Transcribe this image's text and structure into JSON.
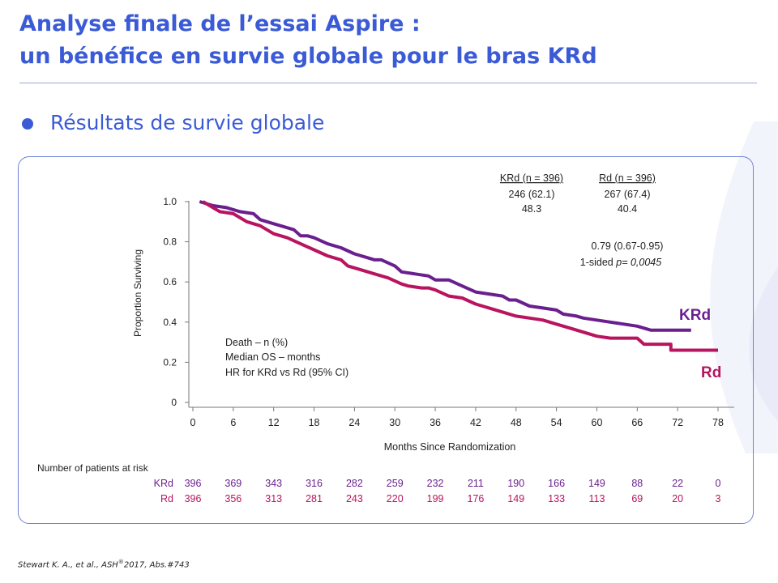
{
  "slide": {
    "title_line1": "Analyse finale de l’essai Aspire :",
    "title_line2": "un bénéfice en survie globale pour le bras KRd",
    "subtitle": "Résultats de survie globale",
    "citation_pre": "Stewart K. A., et al., ASH",
    "citation_sup": "®",
    "citation_post": "2017, Abs.#743"
  },
  "stats": {
    "krd_header": "KRd (n = 396)",
    "rd_header": "Rd (n = 396)",
    "krd_death": "246 (62.1)",
    "rd_death": "267 (67.4)",
    "krd_median": "48.3",
    "rd_median": "40.4",
    "hr": "0.79 (0.67-0.95)",
    "p_prefix": "1-sided ",
    "p_value": "p= 0,0045",
    "row_labels": [
      "Death – n (%)",
      "Median OS – months",
      "HR for KRd vs Rd (95% CI)"
    ]
  },
  "risk_table": {
    "title": "Number  of patients at risk",
    "rows": [
      {
        "label": "KRd",
        "values": [
          "396",
          "369",
          "343",
          "316",
          "282",
          "259",
          "232",
          "211",
          "190",
          "166",
          "149",
          "88",
          "22",
          "0"
        ]
      },
      {
        "label": "Rd",
        "values": [
          "396",
          "356",
          "313",
          "281",
          "243",
          "220",
          "199",
          "176",
          "149",
          "133",
          "113",
          "69",
          "20",
          "3"
        ]
      }
    ]
  },
  "colors": {
    "title": "#3b5bd6",
    "krd": "#6a1f8f",
    "rd": "#b8145f",
    "frame": "#6f82d6"
  },
  "chart_data": {
    "type": "line",
    "xlabel": "Months Since Randomization",
    "ylabel": "Proportion  Surviving",
    "xlim": [
      0,
      78
    ],
    "ylim": [
      0,
      1.0
    ],
    "xticks": [
      "0",
      "6",
      "12",
      "18",
      "24",
      "30",
      "36",
      "42",
      "48",
      "54",
      "60",
      "66",
      "72",
      "78"
    ],
    "yticks": [
      {
        "v": 0,
        "label": "0"
      },
      {
        "v": 0.2,
        "label": "0.2"
      },
      {
        "v": 0.4,
        "label": "0.4"
      },
      {
        "v": 0.6,
        "label": "0.6"
      },
      {
        "v": 0.8,
        "label": "0.8"
      },
      {
        "v": 1.0,
        "label": "1.0"
      }
    ],
    "series": [
      {
        "name": "KRd",
        "color": "#6a1f8f",
        "points": [
          [
            1,
            1.0
          ],
          [
            2,
            0.99
          ],
          [
            3,
            0.98
          ],
          [
            5,
            0.97
          ],
          [
            6,
            0.96
          ],
          [
            7,
            0.95
          ],
          [
            9,
            0.94
          ],
          [
            10,
            0.91
          ],
          [
            12,
            0.89
          ],
          [
            14,
            0.87
          ],
          [
            15,
            0.86
          ],
          [
            16,
            0.83
          ],
          [
            17,
            0.83
          ],
          [
            18,
            0.82
          ],
          [
            20,
            0.79
          ],
          [
            22,
            0.77
          ],
          [
            24,
            0.74
          ],
          [
            26,
            0.72
          ],
          [
            27,
            0.71
          ],
          [
            28,
            0.71
          ],
          [
            30,
            0.68
          ],
          [
            31,
            0.65
          ],
          [
            33,
            0.64
          ],
          [
            35,
            0.63
          ],
          [
            36,
            0.61
          ],
          [
            38,
            0.61
          ],
          [
            40,
            0.58
          ],
          [
            42,
            0.55
          ],
          [
            44,
            0.54
          ],
          [
            46,
            0.53
          ],
          [
            47,
            0.51
          ],
          [
            48,
            0.51
          ],
          [
            50,
            0.48
          ],
          [
            52,
            0.47
          ],
          [
            54,
            0.46
          ],
          [
            55,
            0.44
          ],
          [
            57,
            0.43
          ],
          [
            58,
            0.42
          ],
          [
            60,
            0.41
          ],
          [
            62,
            0.4
          ],
          [
            64,
            0.39
          ],
          [
            66,
            0.38
          ],
          [
            68,
            0.36
          ],
          [
            70,
            0.36
          ],
          [
            72,
            0.36
          ],
          [
            74,
            0.36
          ]
        ]
      },
      {
        "name": "Rd",
        "color": "#b8145f",
        "points": [
          [
            1.5,
            1.0
          ],
          [
            2,
            0.99
          ],
          [
            4,
            0.95
          ],
          [
            6,
            0.94
          ],
          [
            8,
            0.9
          ],
          [
            10,
            0.88
          ],
          [
            12,
            0.84
          ],
          [
            14,
            0.82
          ],
          [
            16,
            0.79
          ],
          [
            18,
            0.76
          ],
          [
            20,
            0.73
          ],
          [
            22,
            0.71
          ],
          [
            23,
            0.68
          ],
          [
            25,
            0.66
          ],
          [
            27,
            0.64
          ],
          [
            29,
            0.62
          ],
          [
            31,
            0.59
          ],
          [
            32,
            0.58
          ],
          [
            34,
            0.57
          ],
          [
            35,
            0.57
          ],
          [
            36,
            0.56
          ],
          [
            38,
            0.53
          ],
          [
            40,
            0.52
          ],
          [
            42,
            0.49
          ],
          [
            44,
            0.47
          ],
          [
            46,
            0.45
          ],
          [
            48,
            0.43
          ],
          [
            50,
            0.42
          ],
          [
            52,
            0.41
          ],
          [
            54,
            0.39
          ],
          [
            56,
            0.37
          ],
          [
            58,
            0.35
          ],
          [
            60,
            0.33
          ],
          [
            62,
            0.32
          ],
          [
            64,
            0.32
          ],
          [
            66,
            0.32
          ],
          [
            67,
            0.29
          ],
          [
            70,
            0.29
          ],
          [
            71,
            0.29
          ],
          [
            71,
            0.26
          ],
          [
            78,
            0.26
          ]
        ]
      }
    ]
  }
}
